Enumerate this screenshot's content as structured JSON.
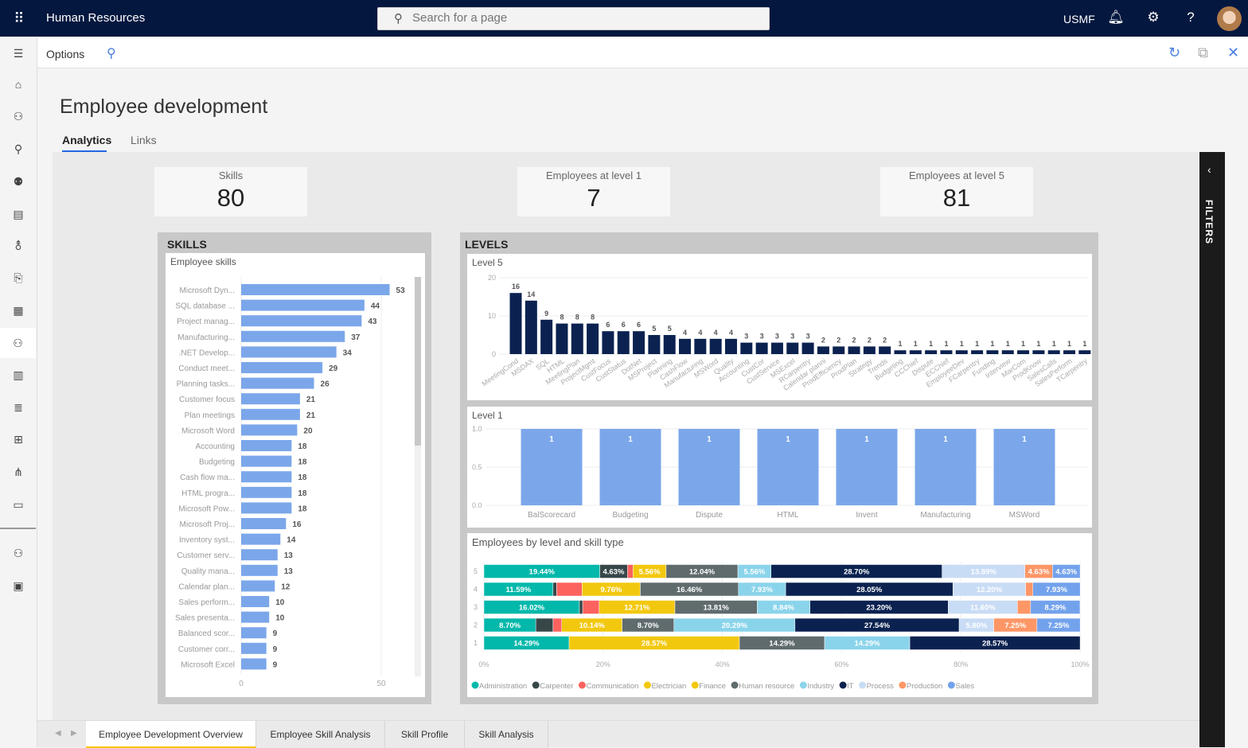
{
  "header": {
    "app_title": "Human Resources",
    "search_placeholder": "Search for a page",
    "company": "USMF",
    "icons": [
      "waffle-icon",
      "search-icon",
      "bell-icon",
      "gear-icon",
      "help-icon",
      "avatar"
    ]
  },
  "actionbar": {
    "options_label": "Options",
    "icons": [
      "search-icon",
      "refresh-icon",
      "open-new-window-icon",
      "close-icon"
    ]
  },
  "leftnav": {
    "icons": [
      "hamburger-icon",
      "home-icon",
      "people-icon",
      "person-document-icon",
      "people-group-icon",
      "clipboard-icon",
      "person-settings-icon",
      "document-edit-icon",
      "calculator-icon",
      "person-training-icon",
      "library-icon",
      "list-icon",
      "org-chart-check-icon",
      "org-chart-icon",
      "shield-screen-icon",
      "people-briefcase-icon",
      "person-screen-icon"
    ]
  },
  "page": {
    "title": "Employee development",
    "tabs": [
      {
        "label": "Analytics",
        "active": true
      },
      {
        "label": "Links",
        "active": false
      }
    ]
  },
  "kpis": [
    {
      "label": "Skills",
      "value": "80"
    },
    {
      "label": "Employees at level 1",
      "value": "7"
    },
    {
      "label": "Employees at level 5",
      "value": "81"
    }
  ],
  "panels": {
    "skills_title": "SKILLS",
    "levels_title": "LEVELS"
  },
  "filters": {
    "label": "FILTERS",
    "icon": "chevron-left-icon"
  },
  "bottom_tabs": [
    {
      "label": "Employee Development Overview",
      "active": true
    },
    {
      "label": "Employee Skill Analysis",
      "active": false
    },
    {
      "label": "Skill Profile",
      "active": false
    },
    {
      "label": "Skill Analysis",
      "active": false
    }
  ],
  "chart_data": [
    {
      "id": "skills",
      "type": "bar",
      "orientation": "horizontal",
      "title": "Employee skills",
      "color": "#7ba7ea",
      "xlim": [
        0,
        53
      ],
      "xticks": [
        "0",
        "50"
      ],
      "categories": [
        "Microsoft Dyn...",
        "SQL database ...",
        "Project manag...",
        "Manufacturing...",
        ".NET Develop...",
        "Conduct meet...",
        "Planning tasks...",
        "Customer focus",
        "Plan meetings",
        "Microsoft Word",
        "Accounting",
        "Budgeting",
        "Cash flow ma...",
        "HTML progra...",
        "Microsoft Pow...",
        "Microsoft Proj...",
        "Inventory syst...",
        "Customer serv...",
        "Quality mana...",
        "Calendar plan...",
        "Sales perform...",
        "Sales presenta...",
        "Balanced scor...",
        "Customer corr...",
        "Microsoft Excel"
      ],
      "values": [
        53,
        44,
        43,
        37,
        34,
        29,
        26,
        21,
        21,
        20,
        18,
        18,
        18,
        18,
        18,
        16,
        14,
        13,
        13,
        12,
        10,
        10,
        9,
        9,
        9
      ]
    },
    {
      "id": "level5",
      "type": "bar",
      "title": "Level 5",
      "color": "#0b2250",
      "ylim": [
        0,
        20
      ],
      "yticks": [
        "0",
        "10",
        "20"
      ],
      "categories": [
        "MeetingCond",
        "MSDAX",
        "SQL",
        "HTML",
        "MeetingPlan",
        "ProjectMgmt",
        "CustFocus",
        "CustStatus",
        "DotNet",
        "MSProject",
        "Planning",
        "CashFlow",
        "Manufacturing",
        "MSWord",
        "Quality",
        "Accounting",
        "CustCor",
        "CustService",
        "MSExcel",
        "RCarpentry",
        "Calendar planni",
        "ProdEfficiency",
        "ProdPlan",
        "Strategy",
        "Trends",
        "Budgeting",
        "CCChief",
        "Dispute",
        "ECChief",
        "EmployeeDev",
        "FCarpentry",
        "Funding",
        "Interview",
        "MarCom",
        "ProdKnow",
        "SalesCalls",
        "SalesPerform",
        "TCarpentry"
      ],
      "values": [
        16,
        14,
        9,
        8,
        8,
        8,
        6,
        6,
        6,
        5,
        5,
        4,
        4,
        4,
        4,
        3,
        3,
        3,
        3,
        3,
        2,
        2,
        2,
        2,
        2,
        1,
        1,
        1,
        1,
        1,
        1,
        1,
        1,
        1,
        1,
        1,
        1,
        1
      ]
    },
    {
      "id": "level1",
      "type": "bar",
      "title": "Level 1",
      "color": "#7ba7ea",
      "ylim": [
        0,
        1
      ],
      "yticks": [
        "0.0",
        "0.5",
        "1.0"
      ],
      "categories": [
        "BalScorecard",
        "Budgeting",
        "Dispute",
        "HTML",
        "Invent",
        "Manufacturing",
        "MSWord"
      ],
      "values": [
        1,
        1,
        1,
        1,
        1,
        1,
        1
      ]
    },
    {
      "id": "bylevel",
      "type": "bar",
      "stacked": "100%",
      "orientation": "horizontal",
      "title": "Employees by level and skill type",
      "xlim": [
        0,
        100
      ],
      "xticks": [
        "0%",
        "20%",
        "40%",
        "60%",
        "80%",
        "100%"
      ],
      "legend_position": "bottom-left",
      "categories": [
        "5",
        "4",
        "3",
        "2",
        "1"
      ],
      "series": [
        {
          "name": "Administration",
          "color": "#01b8aa",
          "values": [
            19.44,
            11.59,
            16.02,
            8.7,
            14.29
          ]
        },
        {
          "name": "Carpenter",
          "color": "#374649",
          "values": [
            4.63,
            0.61,
            0.55,
            2.9,
            0
          ]
        },
        {
          "name": "Communication",
          "color": "#fd625e",
          "values": [
            0.93,
            4.27,
            2.76,
            1.45,
            0
          ]
        },
        {
          "name": "Electrician",
          "color": "#f2c80f",
          "values": [
            0,
            0,
            0,
            0,
            0
          ]
        },
        {
          "name": "Finance",
          "color": "#f2c80f",
          "values": [
            5.56,
            9.76,
            12.71,
            10.14,
            28.57
          ]
        },
        {
          "name": "Human resource",
          "color": "#5f6b6d",
          "values": [
            12.04,
            16.46,
            13.81,
            8.7,
            14.29
          ]
        },
        {
          "name": "Industry",
          "color": "#8ad4eb",
          "values": [
            5.56,
            7.93,
            8.84,
            20.29,
            14.29
          ]
        },
        {
          "name": "IT",
          "color": "#0b2250",
          "values": [
            28.7,
            28.05,
            23.2,
            27.54,
            28.57
          ]
        },
        {
          "name": "Process",
          "color": "#c9dcf5",
          "values": [
            13.89,
            12.2,
            11.6,
            5.8,
            0
          ]
        },
        {
          "name": "Production",
          "color": "#fe9666",
          "values": [
            4.63,
            1.22,
            2.21,
            7.25,
            0
          ]
        },
        {
          "name": "Sales",
          "color": "#73a2ec",
          "values": [
            4.63,
            7.93,
            8.29,
            7.25,
            0
          ]
        }
      ]
    }
  ]
}
